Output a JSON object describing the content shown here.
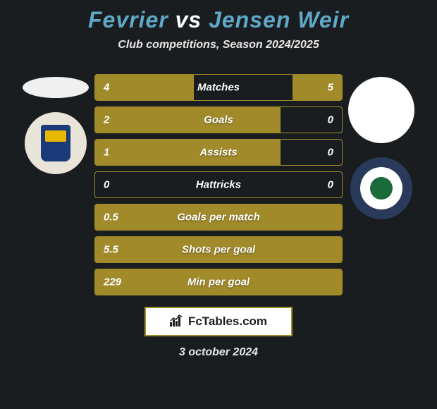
{
  "title": {
    "player1": "Fevrier",
    "vs": "vs",
    "player2": "Jensen Weir",
    "player1_color": "#5fa8c7",
    "player2_color": "#5fa8c7"
  },
  "subtitle": "Club competitions, Season 2024/2025",
  "colors": {
    "background": "#1a1d1f",
    "bar_fill": "#a08a2a",
    "bar_border": "#a08a2a",
    "text": "#ffffff"
  },
  "stats": [
    {
      "label": "Matches",
      "left_value": "4",
      "right_value": "5",
      "left_pct": 40,
      "right_pct": 20
    },
    {
      "label": "Goals",
      "left_value": "2",
      "right_value": "0",
      "left_pct": 75,
      "right_pct": 0
    },
    {
      "label": "Assists",
      "left_value": "1",
      "right_value": "0",
      "left_pct": 75,
      "right_pct": 0
    },
    {
      "label": "Hattricks",
      "left_value": "0",
      "right_value": "0",
      "left_pct": 0,
      "right_pct": 0
    },
    {
      "label": "Goals per match",
      "left_value": "0.5",
      "right_value": "",
      "left_pct": 100,
      "right_pct": 0
    },
    {
      "label": "Shots per goal",
      "left_value": "5.5",
      "right_value": "",
      "left_pct": 100,
      "right_pct": 0
    },
    {
      "label": "Min per goal",
      "left_value": "229",
      "right_value": "",
      "left_pct": 100,
      "right_pct": 0
    }
  ],
  "footer": {
    "site": "FcTables.com"
  },
  "date": "3 october 2024"
}
